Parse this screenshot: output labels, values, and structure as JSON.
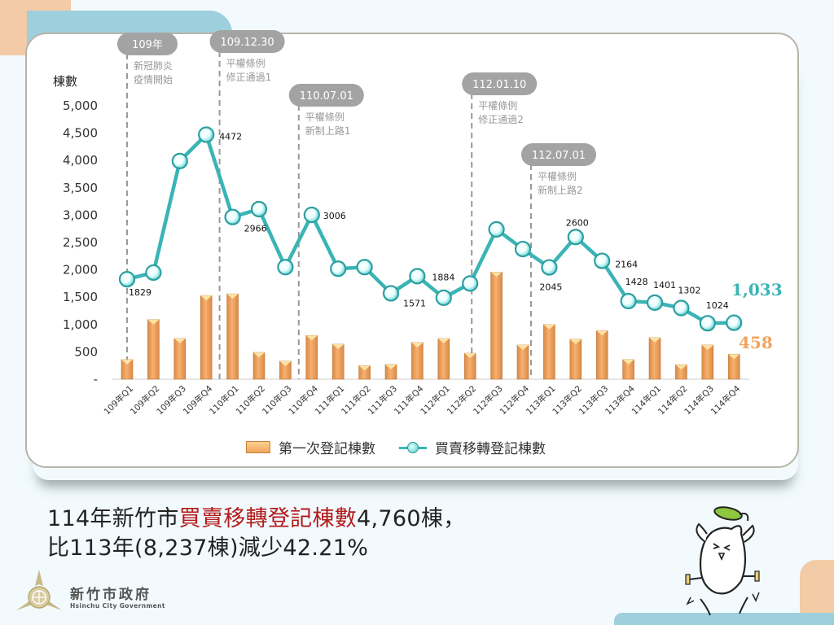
{
  "chart_data": {
    "type": "bar+line",
    "title": "",
    "ylabel": "棟數",
    "ylim": [
      0,
      5000
    ],
    "yticks": [
      "-",
      "500",
      "1,000",
      "1,500",
      "2,000",
      "2,500",
      "3,000",
      "3,500",
      "4,000",
      "4,500",
      "5,000"
    ],
    "categories": [
      "109年Q1",
      "109年Q2",
      "109年Q3",
      "109年Q4",
      "110年Q1",
      "110年Q2",
      "110年Q3",
      "110年Q4",
      "111年Q1",
      "111年Q2",
      "111年Q3",
      "111年Q4",
      "112年Q1",
      "112年Q2",
      "112年Q3",
      "112年Q4",
      "113年Q1",
      "113年Q2",
      "113年Q3",
      "113年Q4",
      "114年Q1",
      "114年Q2",
      "114年Q3",
      "114年Q4"
    ],
    "series": [
      {
        "name": "第一次登記棟數",
        "type": "bar",
        "color": "#f0a45c",
        "values": [
          360,
          1090,
          745,
          1530,
          1560,
          490,
          330,
          800,
          640,
          250,
          270,
          670,
          745,
          475,
          1960,
          625,
          1000,
          730,
          890,
          360,
          760,
          265,
          625,
          458
        ]
      },
      {
        "name": "買賣移轉登記棟數",
        "type": "line",
        "color": "#3ab4b6",
        "values": [
          1829,
          1950,
          3990,
          4472,
          2966,
          3110,
          2050,
          3006,
          2020,
          2050,
          1571,
          1884,
          1490,
          1750,
          2740,
          2380,
          2045,
          2600,
          2164,
          1428,
          1401,
          1302,
          1024,
          1033
        ]
      }
    ],
    "data_labels": [
      {
        "category": "109年Q1",
        "text": "1829"
      },
      {
        "category": "109年Q4",
        "text": "4472"
      },
      {
        "category": "110年Q1",
        "text": "2966"
      },
      {
        "category": "110年Q4",
        "text": "3006"
      },
      {
        "category": "111年Q3",
        "text": "1571"
      },
      {
        "category": "111年Q4",
        "text": "1884"
      },
      {
        "category": "113年Q1",
        "text": "2045"
      },
      {
        "category": "113年Q2",
        "text": "2600"
      },
      {
        "category": "113年Q3",
        "text": "2164"
      },
      {
        "category": "113年Q4",
        "text": "1428"
      },
      {
        "category": "114年Q1",
        "text": "1401"
      },
      {
        "category": "114年Q2",
        "text": "1302"
      },
      {
        "category": "114年Q3",
        "text": "1024"
      }
    ],
    "end_labels": {
      "line": "1,033",
      "bar": "458"
    },
    "annotations": [
      {
        "date": "109年",
        "text": [
          "新冠肺炎",
          "疫情開始"
        ],
        "at": "109年Q1"
      },
      {
        "date": "109.12.30",
        "text": [
          "平權條例",
          "修正通過1"
        ],
        "at": "110年Q1"
      },
      {
        "date": "110.07.01",
        "text": [
          "平權條例",
          "新制上路1"
        ],
        "at": "110年Q4"
      },
      {
        "date": "112.01.10",
        "text": [
          "平權條例",
          "修正通過2"
        ],
        "at": "112年Q2"
      },
      {
        "date": "112.07.01",
        "text": [
          "平權條例",
          "新制上路2"
        ],
        "at": "112年Q4"
      }
    ],
    "legend": [
      "第一次登記棟數",
      "買賣移轉登記棟數"
    ],
    "legend_position": "bottom",
    "grid": false
  },
  "headline": {
    "line1_prefix": "114年新竹市",
    "line1_highlight": "買賣移轉登記棟數",
    "line1_suffix": "4,760棟，",
    "line2": "比113年(8,237棟)減少42.21%"
  },
  "logo": {
    "name_cn": "新竹市政府",
    "name_en": "Hsinchu City Government"
  },
  "colors": {
    "bar": "#f0a45c",
    "line": "#3ab4b6",
    "highlight_red": "#b31a1a",
    "annotation_pill": "#a3a3a3",
    "background": "#f2fafd"
  }
}
